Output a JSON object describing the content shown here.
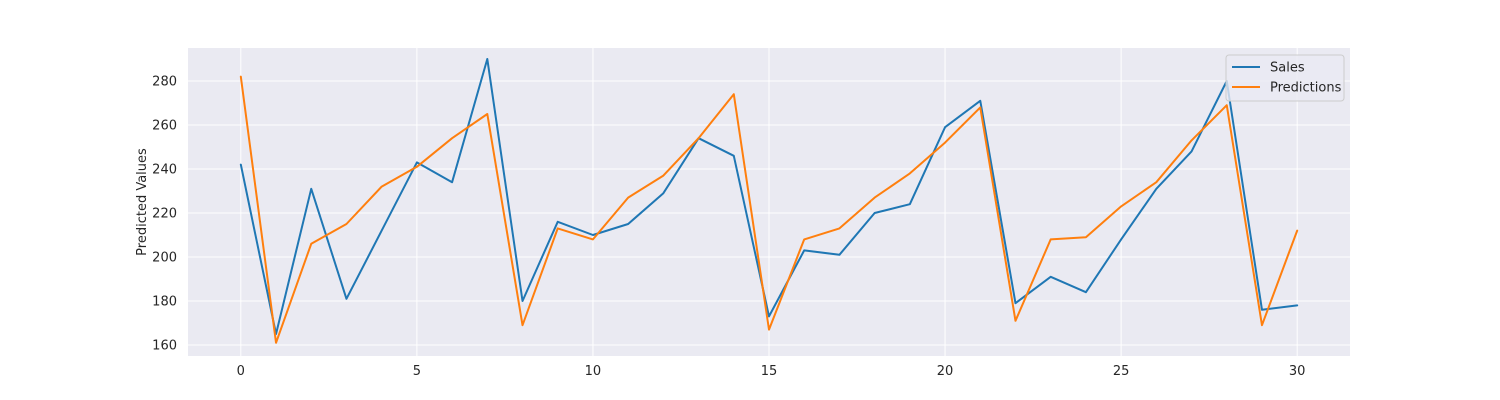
{
  "chart_data": {
    "type": "line",
    "title": "",
    "xlabel": "",
    "ylabel": "Predicted Values",
    "xlim": [
      -1.5,
      31.5
    ],
    "ylim": [
      155,
      295
    ],
    "x_ticks": [
      0,
      5,
      10,
      15,
      20,
      25,
      30
    ],
    "y_ticks": [
      160,
      180,
      200,
      220,
      240,
      260,
      280
    ],
    "grid": true,
    "legend_position": "top-right",
    "x": [
      0,
      1,
      2,
      3,
      4,
      5,
      6,
      7,
      8,
      9,
      10,
      11,
      12,
      13,
      14,
      15,
      16,
      17,
      18,
      19,
      20,
      21,
      22,
      23,
      24,
      25,
      26,
      27,
      28,
      29,
      30
    ],
    "series": [
      {
        "name": "Sales",
        "color": "#1f77b4",
        "values": [
          242,
          165,
          231,
          181,
          212,
          243,
          234,
          290,
          180,
          216,
          210,
          215,
          229,
          254,
          246,
          173,
          203,
          201,
          220,
          224,
          259,
          271,
          179,
          191,
          184,
          208,
          231,
          248,
          280,
          176,
          178
        ]
      },
      {
        "name": "Predictions",
        "color": "#ff7f0e",
        "values": [
          282,
          161,
          206,
          215,
          232,
          241,
          254,
          265,
          169,
          213,
          208,
          227,
          237,
          254,
          274,
          167,
          208,
          213,
          227,
          238,
          252,
          268,
          171,
          208,
          209,
          223,
          234,
          253,
          269,
          169,
          212
        ]
      }
    ]
  },
  "style": {
    "plot_background": "#eaeaf2",
    "grid_color": "#ffffff"
  }
}
